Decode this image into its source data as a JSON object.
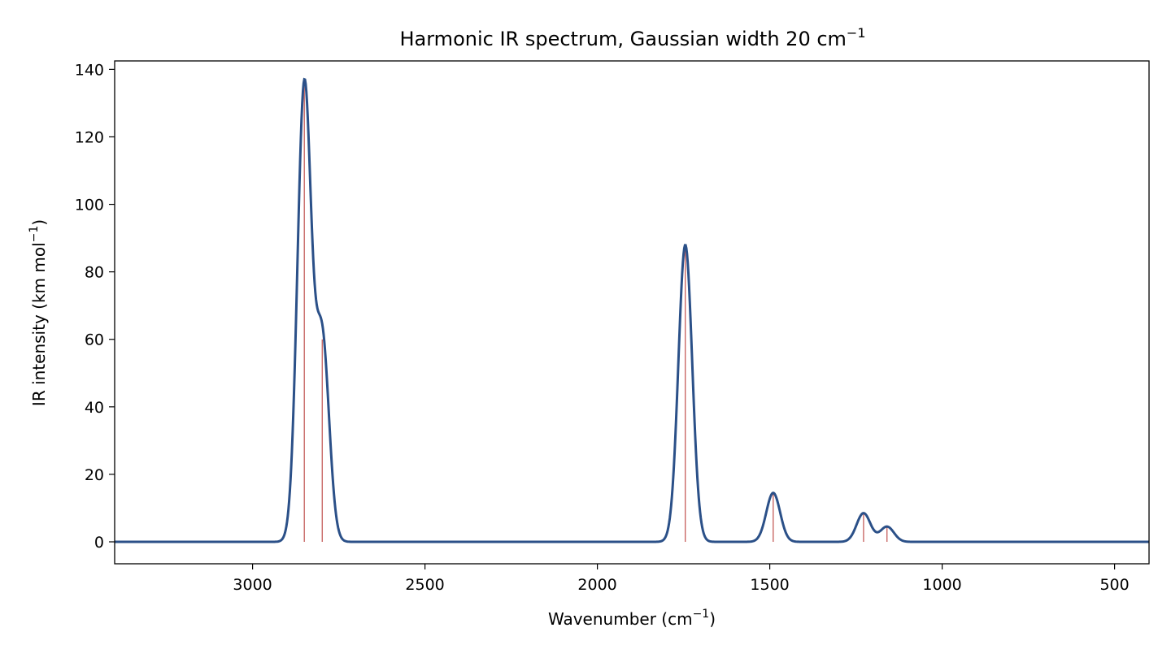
{
  "chart_data": {
    "type": "line",
    "title": "Harmonic IR spectrum, Gaussian width 20 cm",
    "title_superscript": "−1",
    "xlabel": "Wavenumber (cm",
    "xlabel_superscript": "−1",
    "xlabel_suffix": ")",
    "ylabel": "IR intensity (km mol",
    "ylabel_superscript": "−1",
    "ylabel_suffix": ")",
    "x_inverted": true,
    "xlim": [
      3400,
      400
    ],
    "ylim": [
      -6.5,
      142.5
    ],
    "xticks": [
      3000,
      2500,
      2000,
      1500,
      1000,
      500
    ],
    "yticks": [
      0,
      20,
      40,
      60,
      80,
      100,
      120,
      140
    ],
    "grid": false,
    "gaussian_width": 20,
    "sticks": [
      {
        "x": 2850,
        "y": 135
      },
      {
        "x": 2798,
        "y": 60
      },
      {
        "x": 1745,
        "y": 88
      },
      {
        "x": 1490,
        "y": 14.5
      },
      {
        "x": 1228,
        "y": 8.5
      },
      {
        "x": 1160,
        "y": 4.5
      }
    ],
    "colors": {
      "spectrum": "#2b5088",
      "sticks": "#c0504d"
    }
  }
}
